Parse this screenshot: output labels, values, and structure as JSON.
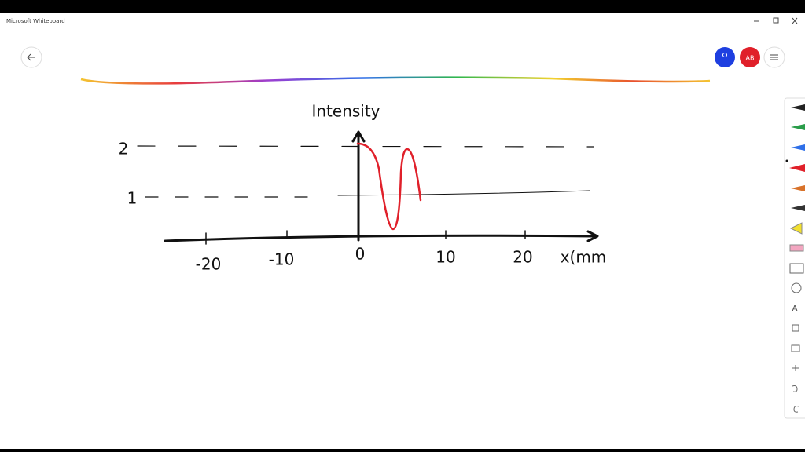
{
  "window": {
    "title": "Microsoft Whiteboard"
  },
  "header": {
    "avatar_initials": "AB"
  },
  "canvas": {
    "y_axis_label": "Intensity",
    "x_axis_label": "x(mm",
    "y_labels": [
      "2",
      "1"
    ],
    "x_labels": [
      "-20",
      "-10",
      "0",
      "10",
      "20"
    ]
  },
  "toolbar": {
    "text_tool": "A"
  }
}
